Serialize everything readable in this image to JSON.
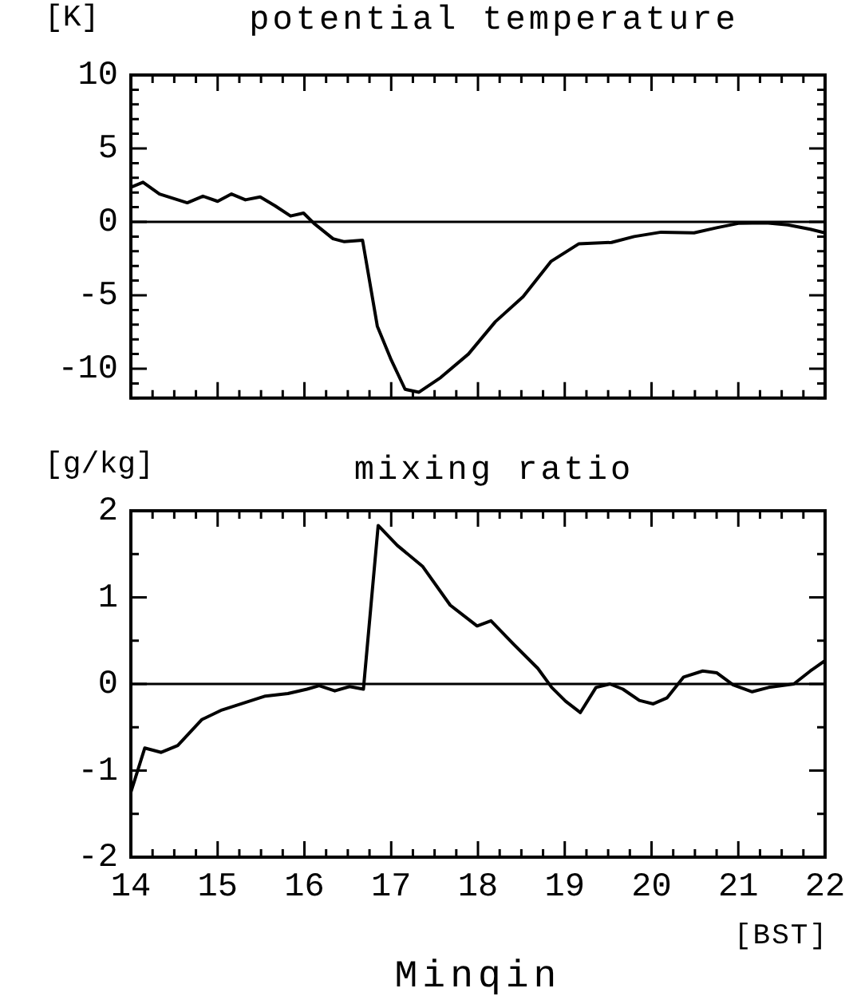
{
  "chart_data": [
    {
      "type": "line",
      "title": "potential temperature",
      "ylabel": "[K]",
      "x": [
        14,
        14.14,
        14.33,
        14.65,
        14.83,
        15.0,
        15.16,
        15.32,
        15.49,
        15.66,
        15.84,
        15.99,
        16.11,
        16.33,
        16.46,
        16.67,
        16.84,
        17.0,
        17.16,
        17.32,
        17.57,
        17.89,
        18.2,
        18.52,
        18.84,
        19.16,
        19.54,
        19.8,
        20.11,
        20.49,
        20.75,
        21.0,
        21.32,
        21.57,
        21.83,
        22.0
      ],
      "series": [
        {
          "color": "#000000",
          "values": [
            2.35,
            2.7,
            1.9,
            1.3,
            1.75,
            1.4,
            1.9,
            1.5,
            1.7,
            1.1,
            0.4,
            0.6,
            -0.1,
            -1.15,
            -1.35,
            -1.25,
            -7.1,
            -9.4,
            -11.4,
            -11.6,
            -10.6,
            -9.0,
            -6.8,
            -5.1,
            -2.7,
            -1.5,
            -1.4,
            -1.0,
            -0.7,
            -0.75,
            -0.4,
            -0.1,
            -0.07,
            -0.2,
            -0.5,
            -0.75
          ]
        }
      ],
      "xlim": [
        14,
        22
      ],
      "xticks": [
        14,
        {
          "value": 14.25,
          "label": null
        },
        {
          "value": 14.5,
          "label": null
        },
        {
          "value": 14.75,
          "label": null
        },
        15,
        {
          "value": 15.25,
          "label": null
        },
        {
          "value": 15.5,
          "label": null
        },
        {
          "value": 15.75,
          "label": null
        },
        16,
        {
          "value": 16.25,
          "label": null
        },
        {
          "value": 16.5,
          "label": null
        },
        {
          "value": 16.75,
          "label": null
        },
        17,
        {
          "value": 17.25,
          "label": null
        },
        {
          "value": 17.5,
          "label": null
        },
        {
          "value": 17.75,
          "label": null
        },
        18,
        {
          "value": 18.25,
          "label": null
        },
        {
          "value": 18.5,
          "label": null
        },
        {
          "value": 18.75,
          "label": null
        },
        19,
        {
          "value": 19.25,
          "label": null
        },
        {
          "value": 19.5,
          "label": null
        },
        {
          "value": 19.75,
          "label": null
        },
        20,
        {
          "value": 20.25,
          "label": null
        },
        {
          "value": 20.5,
          "label": null
        },
        {
          "value": 20.75,
          "label": null
        },
        21,
        {
          "value": 21.25,
          "label": null
        },
        {
          "value": 21.5,
          "label": null
        },
        {
          "value": 21.75,
          "label": null
        },
        22
      ],
      "ylim": [
        -12,
        10
      ],
      "yticks": [
        {
          "value": -12,
          "label": null
        },
        {
          "value": -11,
          "label": null
        },
        -10,
        {
          "value": -9,
          "label": null
        },
        {
          "value": -8,
          "label": null
        },
        {
          "value": -7,
          "label": null
        },
        {
          "value": -6,
          "label": null
        },
        -5,
        {
          "value": -4,
          "label": null
        },
        {
          "value": -3,
          "label": null
        },
        {
          "value": -2,
          "label": null
        },
        {
          "value": -1,
          "label": null
        },
        0,
        {
          "value": 1,
          "label": null
        },
        {
          "value": 2,
          "label": null
        },
        {
          "value": 3,
          "label": null
        },
        {
          "value": 4,
          "label": null
        },
        5,
        {
          "value": 6,
          "label": null
        },
        {
          "value": 7,
          "label": null
        },
        {
          "value": 8,
          "label": null
        },
        {
          "value": 9,
          "label": null
        },
        10
      ],
      "ref_lines": [
        {
          "axis": "y",
          "value": 0,
          "color": "#000000"
        }
      ],
      "tick_labels": "y",
      "marker": "none",
      "line_style": "solid",
      "legend": false,
      "grid": false
    },
    {
      "type": "line",
      "title": "mixing ratio",
      "ylabel": "[g/kg]",
      "xlabel": "[BST]",
      "annotations": [
        "Minqin"
      ],
      "x": [
        14,
        14.16,
        14.35,
        14.54,
        14.82,
        15.05,
        15.3,
        15.55,
        15.81,
        16.03,
        16.17,
        16.35,
        16.52,
        16.68,
        16.85,
        17.07,
        17.36,
        17.68,
        17.99,
        18.15,
        18.41,
        18.69,
        18.85,
        19.01,
        19.18,
        19.36,
        19.52,
        19.67,
        19.86,
        20.02,
        20.18,
        20.37,
        20.59,
        20.75,
        20.94,
        21.16,
        21.35,
        21.64,
        21.83,
        22.0
      ],
      "series": [
        {
          "color": "#000000",
          "values": [
            -1.25,
            -0.74,
            -0.79,
            -0.71,
            -0.41,
            -0.3,
            -0.22,
            -0.14,
            -0.11,
            -0.06,
            -0.02,
            -0.08,
            -0.03,
            -0.06,
            1.83,
            1.6,
            1.36,
            0.91,
            0.67,
            0.73,
            0.46,
            0.18,
            -0.04,
            -0.2,
            -0.33,
            -0.04,
            0.0,
            -0.06,
            -0.19,
            -0.23,
            -0.16,
            0.08,
            0.15,
            0.13,
            -0.01,
            -0.09,
            -0.04,
            0.0,
            0.15,
            0.27
          ]
        }
      ],
      "xlim": [
        14,
        22
      ],
      "xticks": [
        14,
        {
          "value": 14.25,
          "label": null
        },
        {
          "value": 14.5,
          "label": null
        },
        {
          "value": 14.75,
          "label": null
        },
        15,
        {
          "value": 15.25,
          "label": null
        },
        {
          "value": 15.5,
          "label": null
        },
        {
          "value": 15.75,
          "label": null
        },
        16,
        {
          "value": 16.25,
          "label": null
        },
        {
          "value": 16.5,
          "label": null
        },
        {
          "value": 16.75,
          "label": null
        },
        17,
        {
          "value": 17.25,
          "label": null
        },
        {
          "value": 17.5,
          "label": null
        },
        {
          "value": 17.75,
          "label": null
        },
        18,
        {
          "value": 18.25,
          "label": null
        },
        {
          "value": 18.5,
          "label": null
        },
        {
          "value": 18.75,
          "label": null
        },
        19,
        {
          "value": 19.25,
          "label": null
        },
        {
          "value": 19.5,
          "label": null
        },
        {
          "value": 19.75,
          "label": null
        },
        20,
        {
          "value": 20.25,
          "label": null
        },
        {
          "value": 20.5,
          "label": null
        },
        {
          "value": 20.75,
          "label": null
        },
        21,
        {
          "value": 21.25,
          "label": null
        },
        {
          "value": 21.5,
          "label": null
        },
        {
          "value": 21.75,
          "label": null
        },
        22
      ],
      "ylim": [
        -2,
        2
      ],
      "yticks": [
        -2,
        {
          "value": -1.5,
          "label": null
        },
        -1,
        {
          "value": -0.5,
          "label": null
        },
        0,
        {
          "value": 0.5,
          "label": null
        },
        1,
        {
          "value": 1.5,
          "label": null
        },
        2
      ],
      "ref_lines": [
        {
          "axis": "y",
          "value": 0,
          "color": "#000000"
        }
      ],
      "marker": "none",
      "line_style": "solid",
      "legend": false,
      "grid": false
    }
  ]
}
